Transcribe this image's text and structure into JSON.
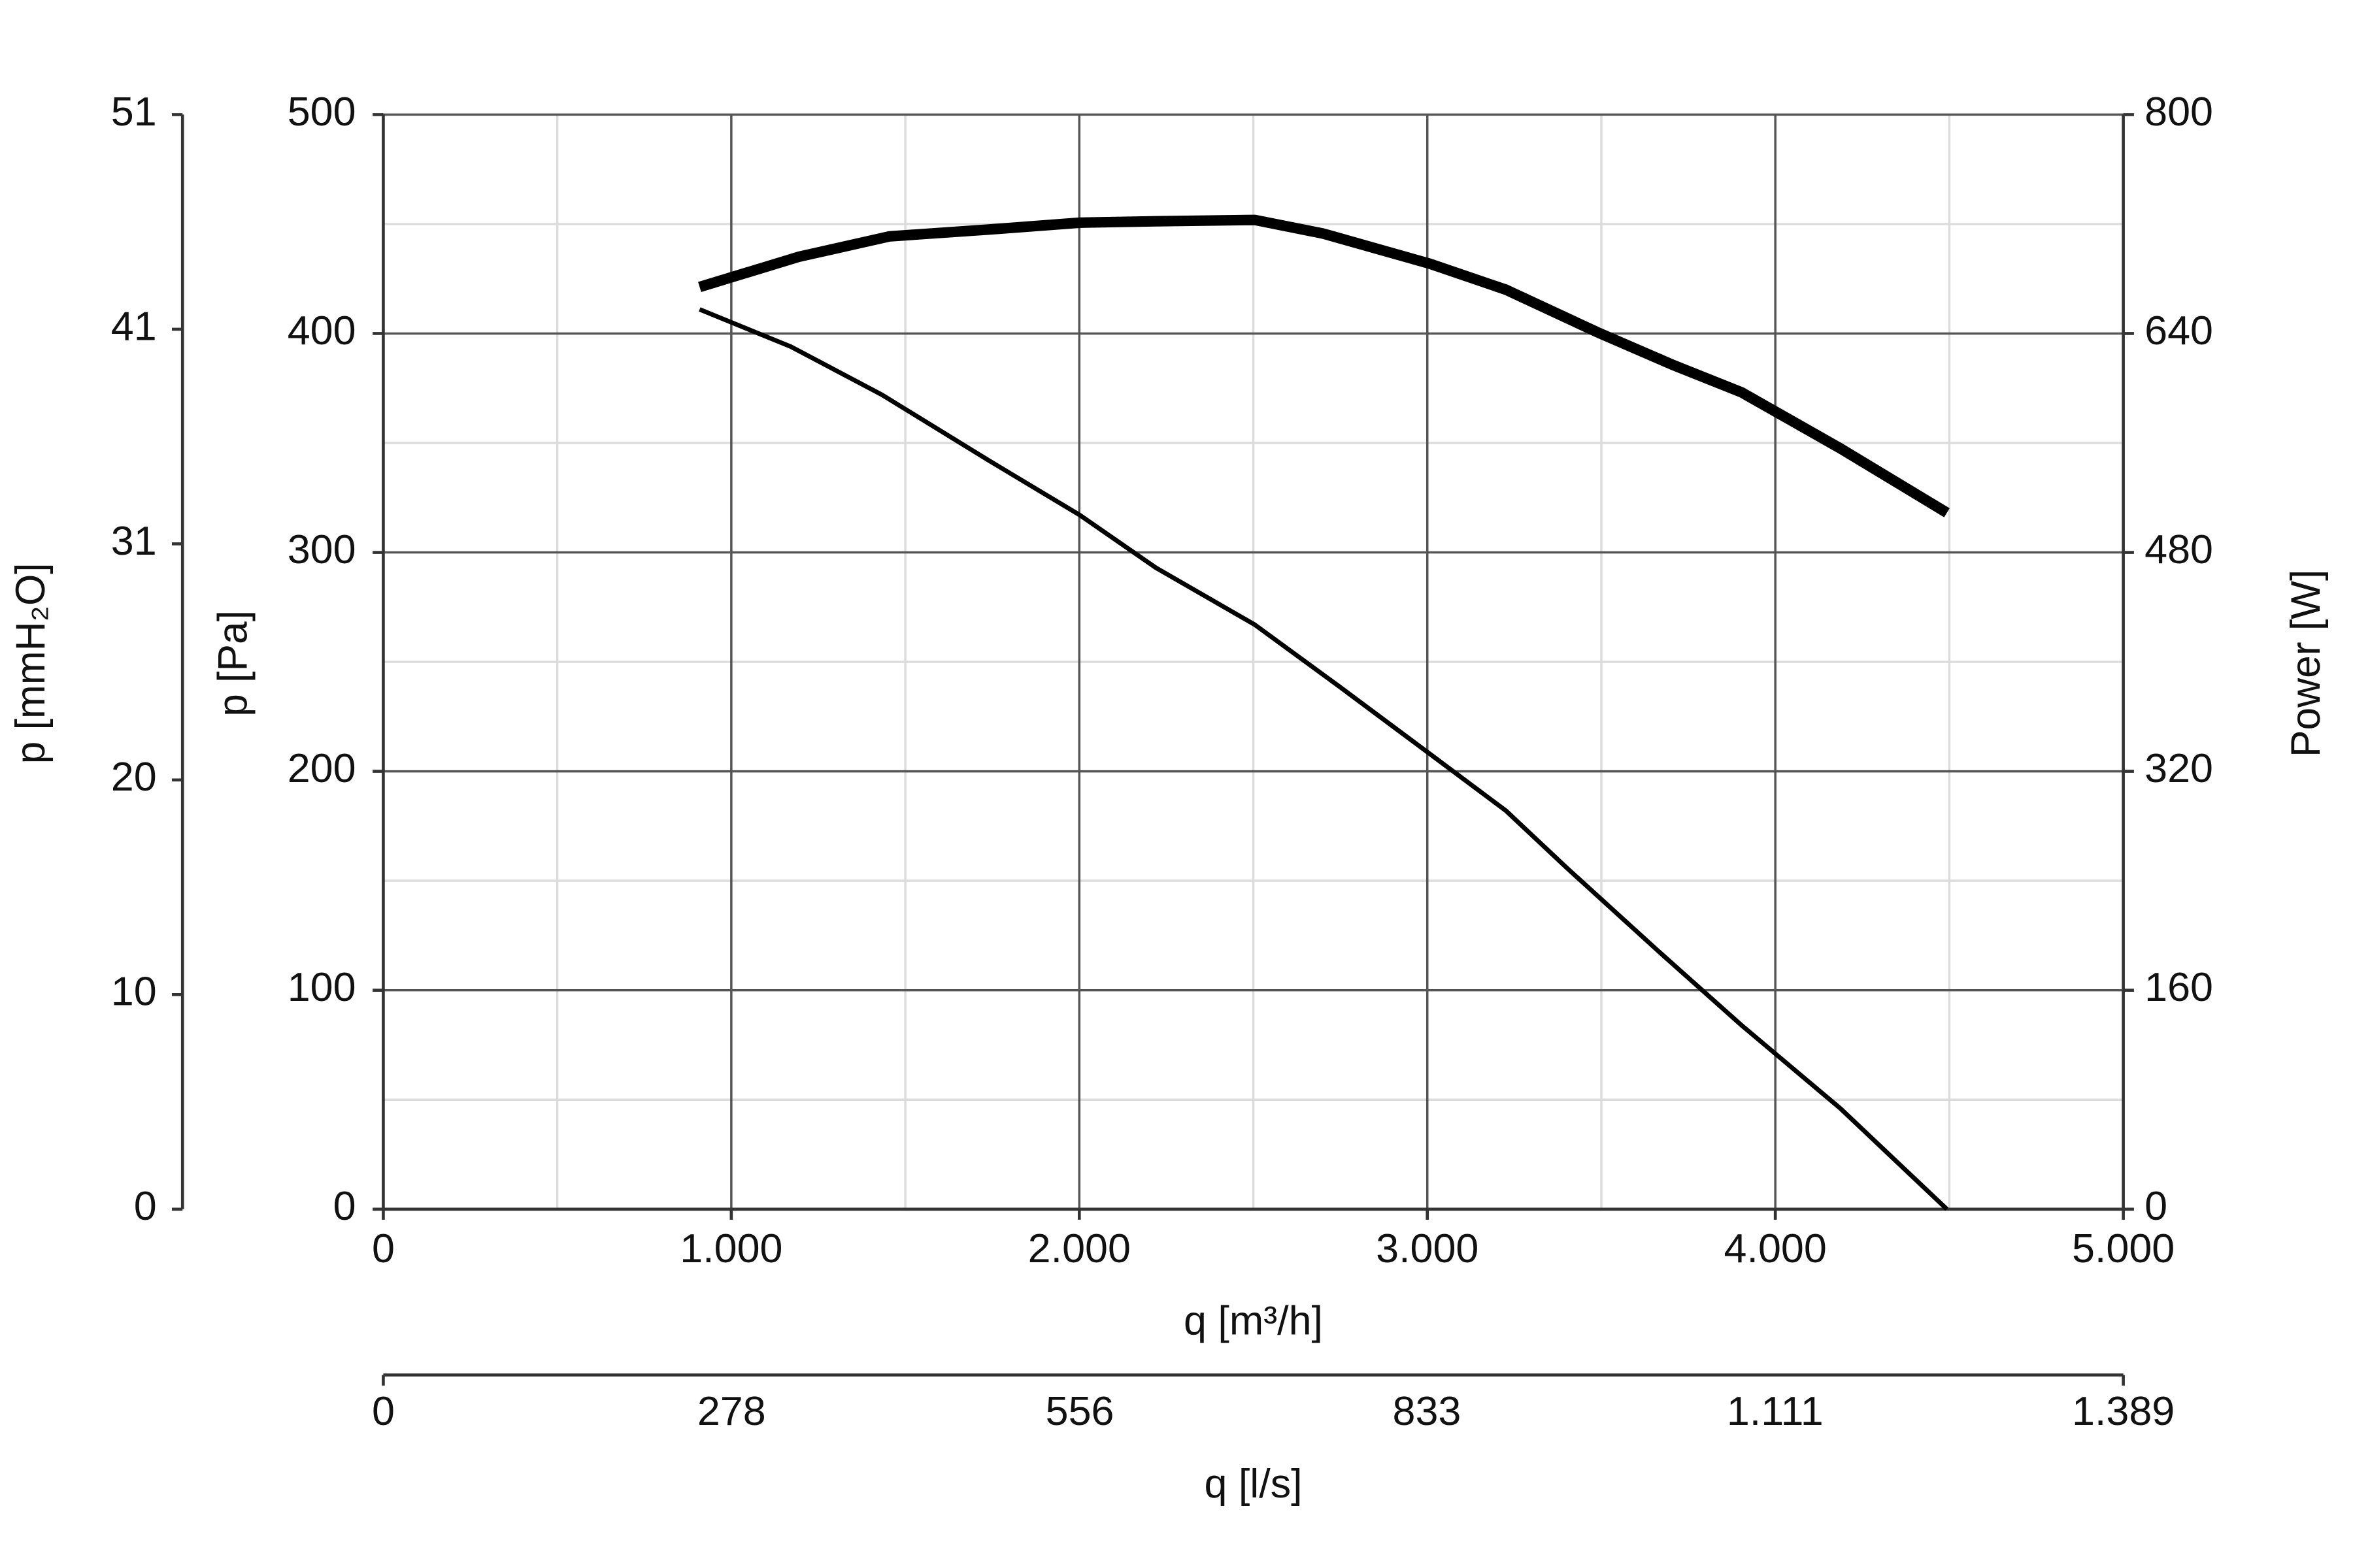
{
  "chart_data": {
    "type": "line",
    "xlabel": "q [m³/h]",
    "ylabel": "p [Pa]",
    "y2label": "Power [W]",
    "y3label": "p [mmH₂O]",
    "x2label": "q [l/s]",
    "xlim": [
      0,
      5000
    ],
    "xticks": [
      0,
      {
        "value": 1000,
        "label": "1.000"
      },
      {
        "value": 2000,
        "label": "2.000"
      },
      {
        "value": 3000,
        "label": "3.000"
      },
      {
        "value": 4000,
        "label": "4.000"
      },
      {
        "value": 5000,
        "label": "5.000"
      }
    ],
    "x_minor_ticks": [
      500,
      1500,
      2500,
      3500,
      4500
    ],
    "ylim": [
      0,
      500
    ],
    "yticks": [
      0,
      100,
      200,
      300,
      400,
      500
    ],
    "y_minor_ticks": [
      50,
      150,
      250,
      350,
      450
    ],
    "y2lim": [
      0,
      800
    ],
    "y2ticks": [
      0,
      160,
      320,
      480,
      640,
      800
    ],
    "y3lim": [
      0,
      51
    ],
    "y3ticks": [
      0,
      10,
      20,
      31,
      41,
      51
    ],
    "x2lim": [
      0,
      1389
    ],
    "x2ticks": [
      0,
      278,
      556,
      833,
      {
        "value": 1111,
        "label": "1.111"
      },
      {
        "value": 1389,
        "label": "1.389"
      }
    ],
    "grid": true,
    "series": [
      {
        "color": "#000000",
        "line_width": 3,
        "axis": "y",
        "x": [
          909,
          1171,
          1433,
          1740,
          2002,
          2220,
          2504,
          2745,
          3007,
          3226,
          3400,
          3663,
          3903,
          4187,
          4493
        ],
        "values": [
          411,
          394,
          372,
          342,
          317,
          293,
          267,
          239,
          208,
          182,
          156,
          118,
          84,
          46,
          0
        ]
      },
      {
        "color": "#000000",
        "line_width": 7,
        "axis": "y2",
        "x": [
          909,
          1193,
          1455,
          1740,
          2002,
          2220,
          2504,
          2701,
          3007,
          3226,
          3488,
          3706,
          3903,
          4187,
          4493
        ],
        "values": [
          674,
          696,
          711,
          716,
          721,
          722,
          723,
          713,
          691,
          672,
          641,
          617,
          597,
          556,
          509
        ]
      }
    ]
  }
}
